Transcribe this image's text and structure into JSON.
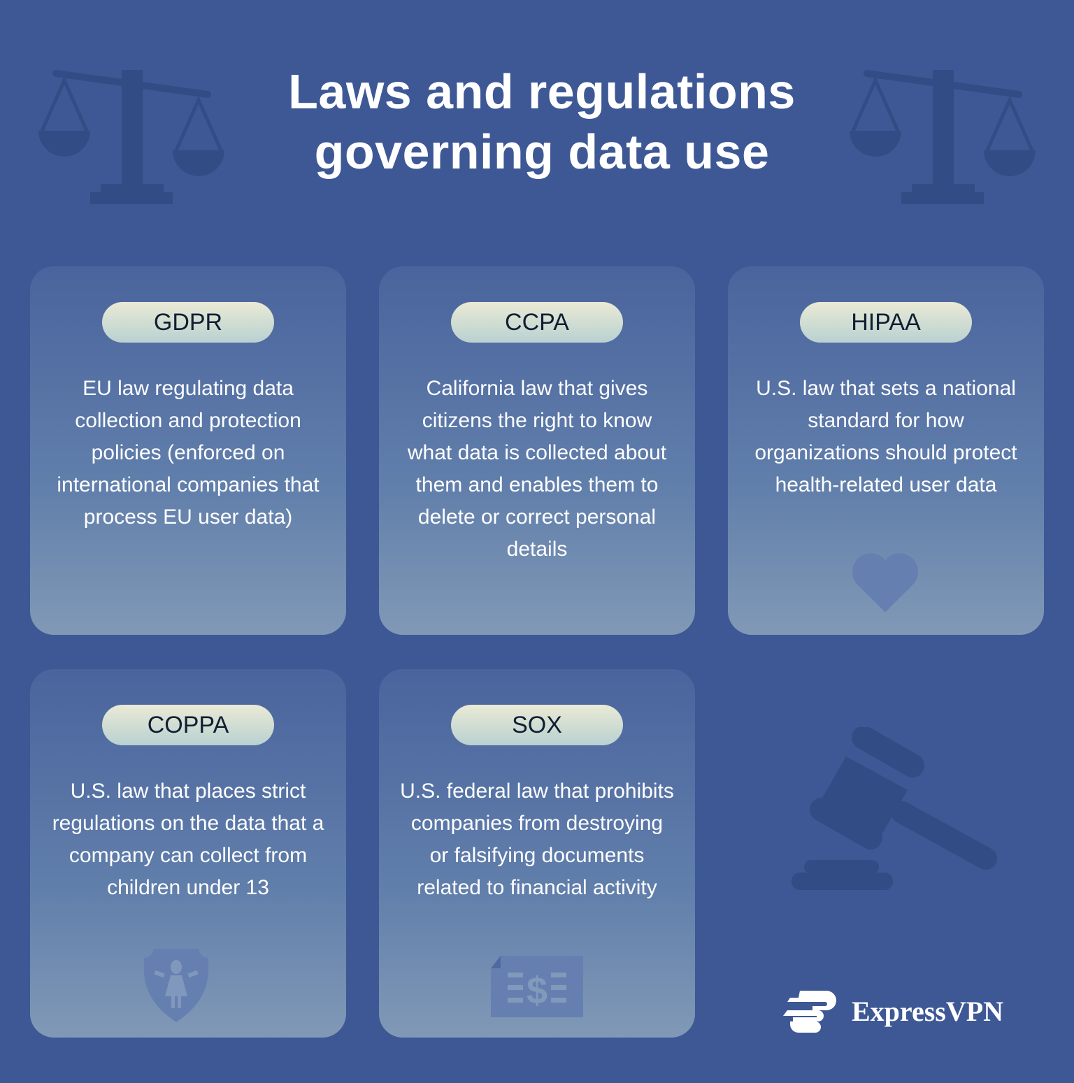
{
  "title": {
    "line1": "Laws and regulations",
    "line2": "governing data use"
  },
  "colors": {
    "background": "#3d5895",
    "icon_dark": "#324c85",
    "pill_top": "#eaead5",
    "pill_bottom": "#b9d1d1",
    "text": "#ffffff"
  },
  "cards": [
    {
      "label": "GDPR",
      "description": "EU law regulating data collection and protection policies (enforced on international companies that process EU user data)",
      "icon": ""
    },
    {
      "label": "CCPA",
      "description": "California law that gives citizens the right to know what data is collected about them and enables them to delete or correct personal details",
      "icon": ""
    },
    {
      "label": "HIPAA",
      "description": "U.S. law that sets a national standard for how organizations should protect health-related user data",
      "icon": "heart-icon"
    },
    {
      "label": "COPPA",
      "description": "U.S. law that places strict regulations on the data that a company can collect from children under 13",
      "icon": "child-shield-icon"
    },
    {
      "label": "SOX",
      "description": "U.S. federal law that prohibits companies from destroying or falsifying documents related to financial activity",
      "icon": "financial-document-icon"
    }
  ],
  "decorations": [
    "scales-of-justice-icon",
    "gavel-icon"
  ],
  "brand": {
    "name": "ExpressVPN"
  }
}
